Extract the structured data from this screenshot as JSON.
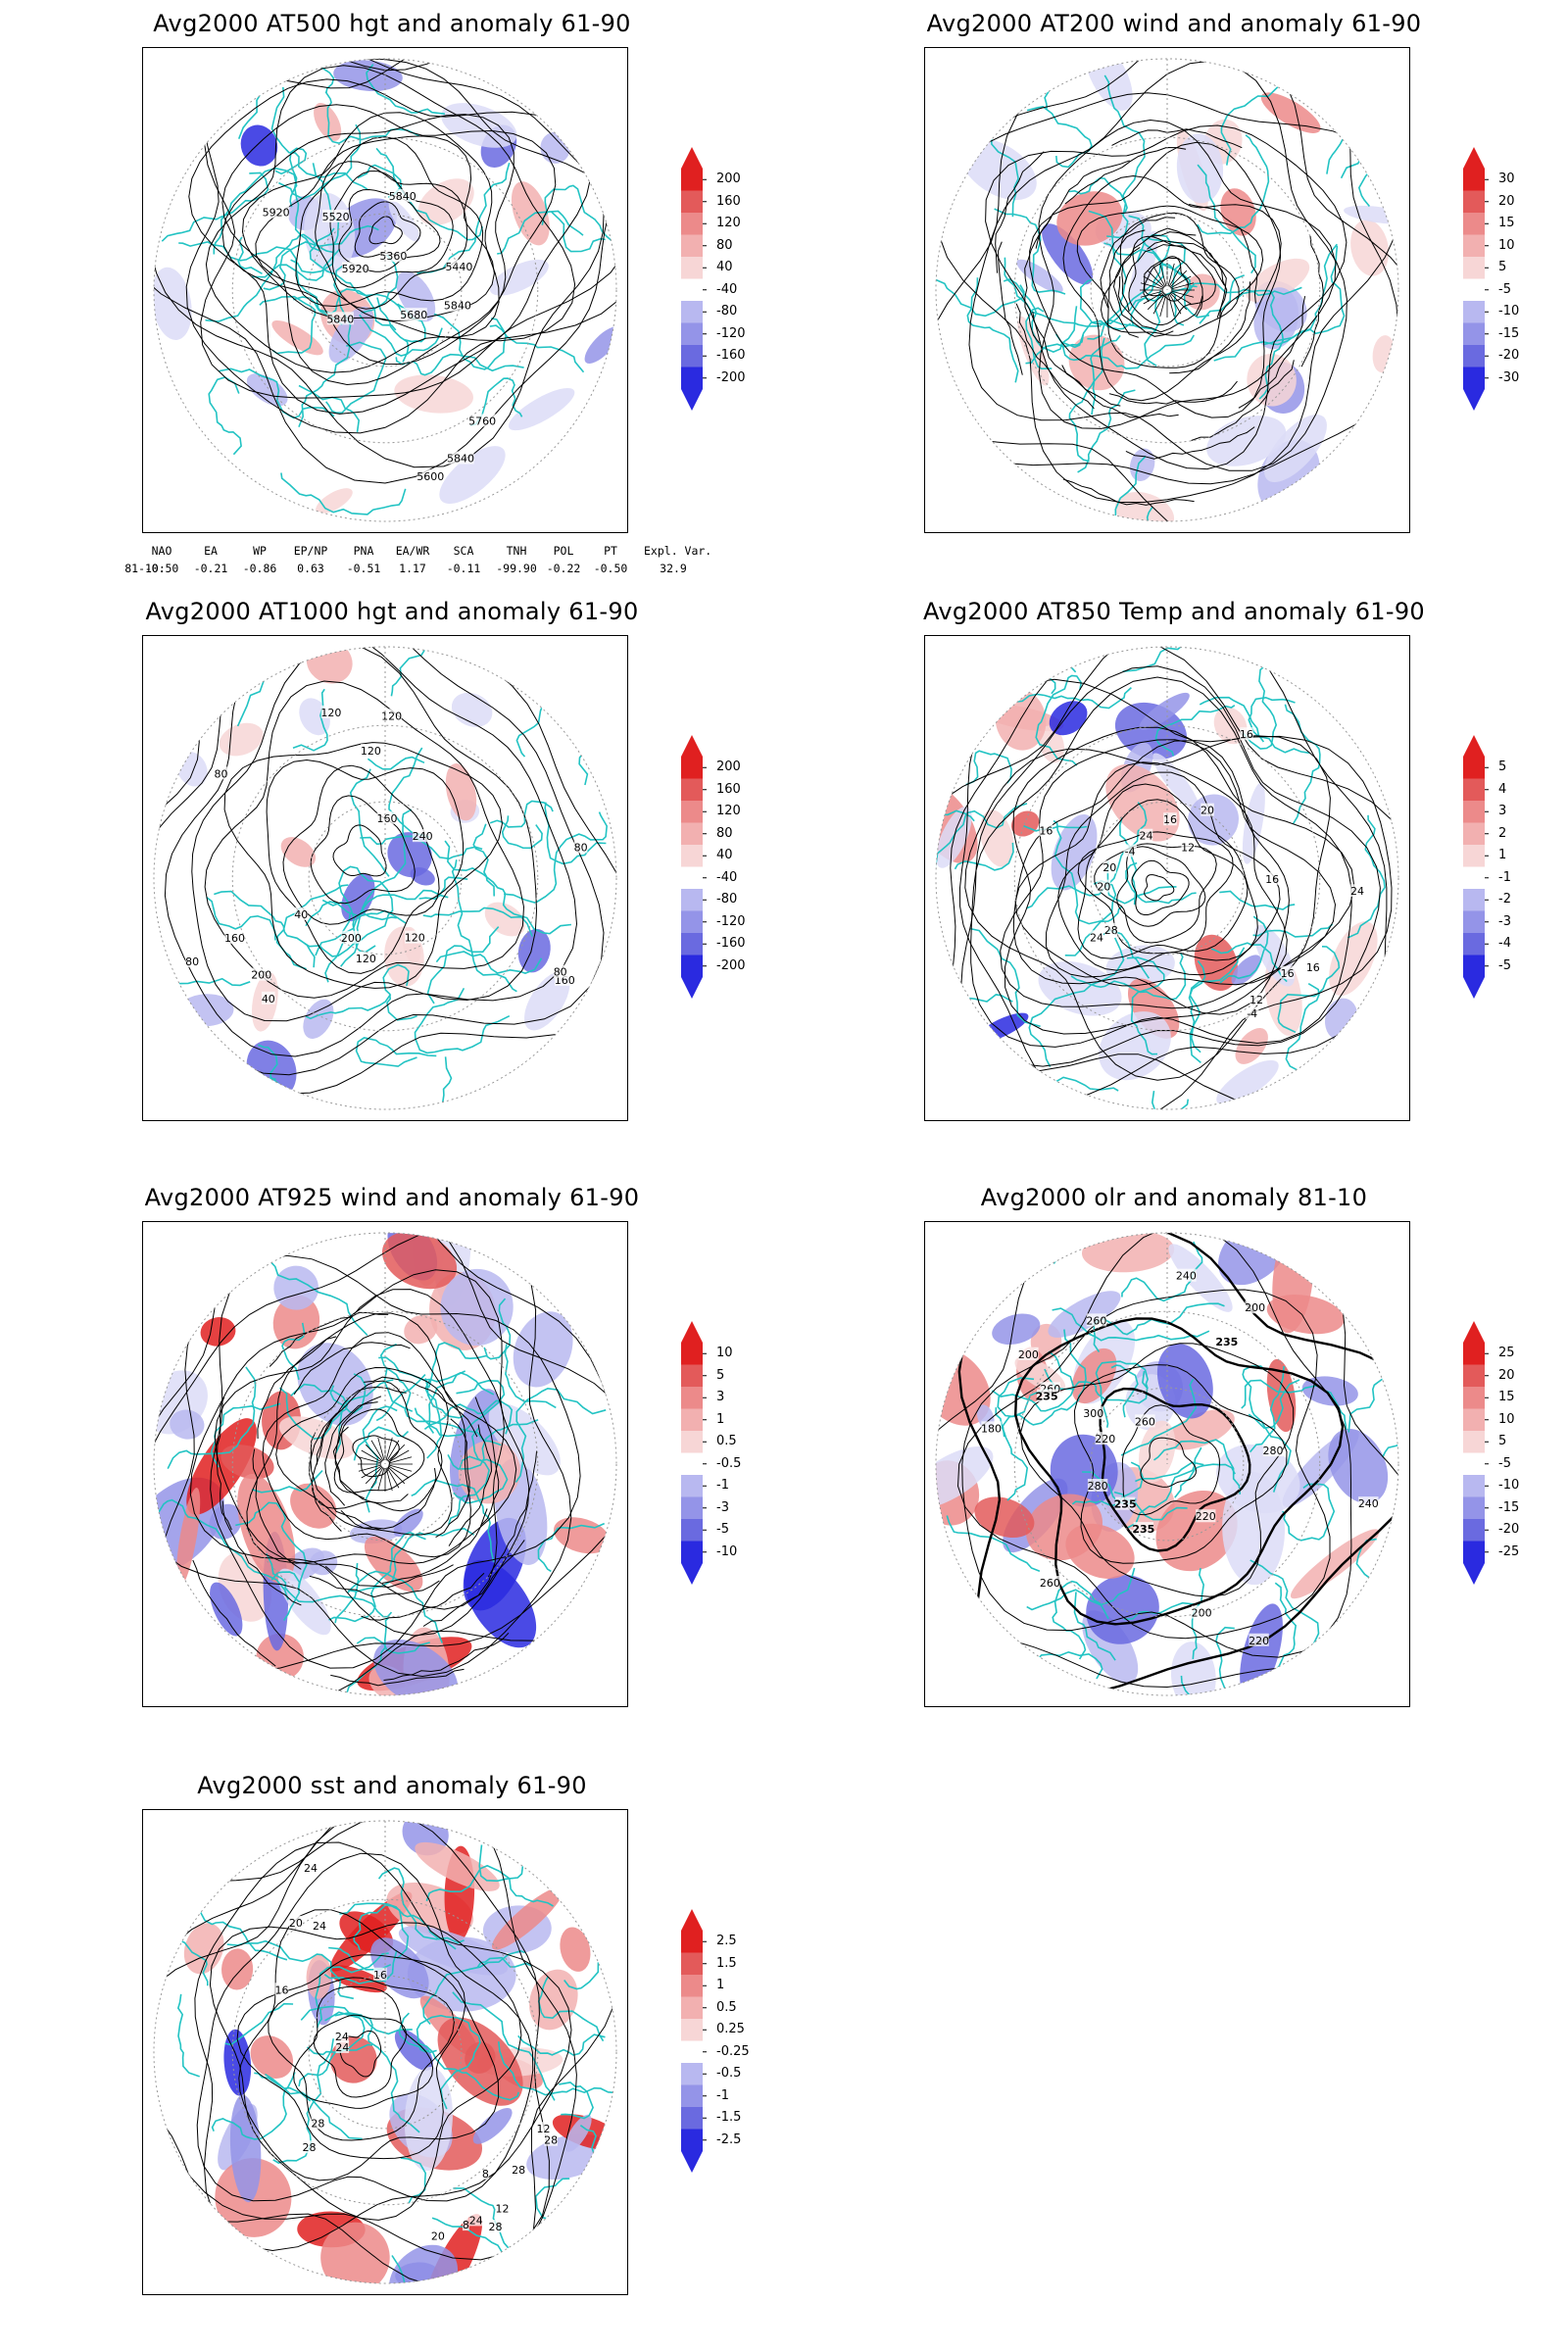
{
  "panels": [
    {
      "id": "at500",
      "title": "Avg2000 AT500 hgt and anomaly 61-90",
      "contour_labels": [
        "5840",
        "5920",
        "5360",
        "5440",
        "5520",
        "5600",
        "5680",
        "5760",
        "5840",
        "5920",
        "5840",
        "5840"
      ],
      "colorbar": [
        "200",
        "160",
        "120",
        "80",
        "40",
        "-40",
        "-80",
        "-120",
        "-160",
        "-200"
      ]
    },
    {
      "id": "at200",
      "title": "Avg2000 AT200 wind and anomaly 61-90",
      "contour_labels": [],
      "colorbar": [
        "30",
        "20",
        "15",
        "10",
        "5",
        "-5",
        "-10",
        "-15",
        "-20",
        "-30"
      ]
    },
    {
      "id": "at1000",
      "title": "Avg2000 AT1000 hgt and anomaly 61-90",
      "contour_labels": [
        "120",
        "80",
        "240",
        "200",
        "160",
        "120",
        "80",
        "40",
        "160",
        "200",
        "160",
        "120",
        "80",
        "120",
        "40",
        "80",
        "120"
      ],
      "colorbar": [
        "200",
        "160",
        "120",
        "80",
        "40",
        "-40",
        "-80",
        "-120",
        "-160",
        "-200"
      ]
    },
    {
      "id": "at850",
      "title": "Avg2000 AT850 Temp and anomaly 61-90",
      "contour_labels": [
        "16",
        "16",
        "12",
        "20",
        "24",
        "16",
        "-4",
        "-4",
        "12",
        "16",
        "20",
        "24",
        "28",
        "24",
        "20",
        "16",
        "16"
      ],
      "colorbar": [
        "5",
        "4",
        "3",
        "2",
        "1",
        "-1",
        "-2",
        "-3",
        "-4",
        "-5"
      ]
    },
    {
      "id": "at925",
      "title": "Avg2000 AT925 wind and anomaly 61-90",
      "contour_labels": [],
      "colorbar": [
        "10",
        "5",
        "3",
        "1",
        "0.5",
        "-0.5",
        "-1",
        "-3",
        "-5",
        "-10"
      ]
    },
    {
      "id": "olr",
      "title": "Avg2000 olr and anomaly 81-10",
      "contour_labels": [
        "260",
        "235",
        "220",
        "200",
        "240",
        "260",
        "235",
        "220",
        "200",
        "180",
        "235",
        "280",
        "260",
        "300",
        "280",
        "260",
        "240",
        "235",
        "200",
        "220"
      ],
      "colorbar": [
        "25",
        "20",
        "15",
        "10",
        "5",
        "-5",
        "-10",
        "-15",
        "-20",
        "-25"
      ]
    },
    {
      "id": "sst",
      "title": "Avg2000 sst and anomaly 61-90",
      "contour_labels": [
        "28",
        "24",
        "24",
        "28",
        "20",
        "16",
        "12",
        "8",
        "28",
        "24",
        "16",
        "12",
        "8",
        "20",
        "24",
        "28",
        "28",
        "24"
      ],
      "colorbar": [
        "2.5",
        "1.5",
        "1",
        "0.5",
        "0.25",
        "-0.25",
        "-0.5",
        "-1",
        "-1.5",
        "-2.5"
      ]
    }
  ],
  "teleconnections": {
    "headers": [
      "NAO",
      "EA",
      "WP",
      "EP/NP",
      "PNA",
      "EA/WR",
      "SCA",
      "TNH",
      "POL",
      "PT",
      "Expl. Var."
    ],
    "row_label": "81-10:",
    "values": [
      "-0.50",
      "-0.21",
      "-0.86",
      "0.63",
      "-0.51",
      "1.17",
      "-0.11",
      "-99.90",
      "-0.22",
      "-0.50",
      "32.9"
    ]
  },
  "colors": {
    "land_outline": "#22c3c3",
    "contour": "#000000",
    "positive": [
      "#f7d6d6",
      "#f2b0b0",
      "#ec8a8a",
      "#e35a5a",
      "#e02020"
    ],
    "negative": [
      "#dcdcf7",
      "#b8b8f0",
      "#9494e8",
      "#6a6ae0",
      "#2a2ae0"
    ]
  }
}
